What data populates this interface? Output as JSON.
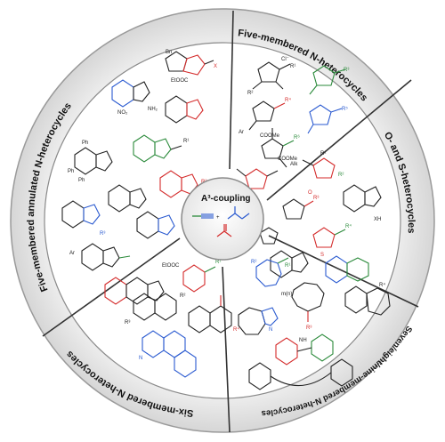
{
  "diagram": {
    "center_title": "A³-coupling",
    "segments": [
      {
        "key": "five",
        "title": "Five-membered N-heterocycles",
        "subst": [
          "Cl⁻",
          "R¹",
          "R²",
          "R³",
          "R⁴",
          "R⁵",
          "R⁶",
          "Ar",
          "COOMe",
          "COOMe"
        ]
      },
      {
        "key": "os",
        "title": "O- and S-heterocycles",
        "subst": [
          "Alk",
          "R¹",
          "R²",
          "R³",
          "R⁴",
          "XH",
          "O",
          "S"
        ]
      },
      {
        "key": "seven",
        "title": "Seven/eight/nine-membered N-heterocycles",
        "subst": [
          "R¹",
          "R²",
          "R³",
          "R⁴",
          "N",
          "NH",
          "m(n)"
        ]
      },
      {
        "key": "six",
        "title": "Six-membered N-heterocycles",
        "subst": [
          "EtOOC",
          "R¹",
          "R²",
          "R³",
          "R⁴",
          "N"
        ]
      },
      {
        "key": "annulated",
        "title": "Five-membered annulated N-heterocycles",
        "subst": [
          "Bn",
          "EtOOC",
          "NO₂",
          "NH₂",
          "Ph",
          "Ph",
          "Ph",
          "R¹",
          "R²",
          "R³",
          "Ar",
          "X"
        ]
      }
    ],
    "reagents": [
      "R¹—≡",
      "R²R³NH",
      "R⁴CHO"
    ]
  }
}
